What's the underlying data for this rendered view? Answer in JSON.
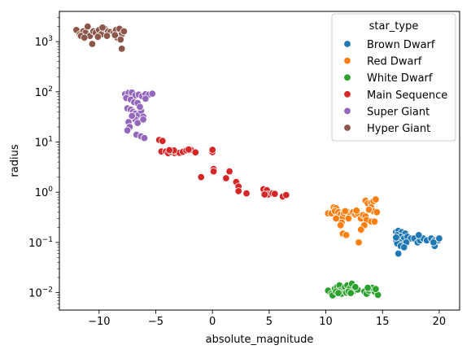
{
  "chart_data": {
    "type": "scatter",
    "xlabel": "absolute_magnitude",
    "ylabel": "radius",
    "xlim": [
      -13.5,
      21.8
    ],
    "ylim": [
      0.0045,
      4000
    ],
    "y_scale": "log",
    "grid": false,
    "x_ticks": [
      -10,
      -5,
      0,
      5,
      10,
      15,
      20
    ],
    "x_tick_labels": [
      "−10",
      "−5",
      "0",
      "5",
      "10",
      "15",
      "20"
    ],
    "y_ticks": [
      0.01,
      0.1,
      1,
      10,
      100,
      1000
    ],
    "y_tick_labels": [
      {
        "base": "10",
        "exp": "−2"
      },
      {
        "base": "10",
        "exp": "−1"
      },
      {
        "base": "10",
        "exp": "0"
      },
      {
        "base": "10",
        "exp": "1"
      },
      {
        "base": "10",
        "exp": "2"
      },
      {
        "base": "10",
        "exp": "3"
      }
    ],
    "legend": {
      "title": "star_type",
      "position": "top-right"
    },
    "series": [
      {
        "name": "Brown Dwarf",
        "color": "#1f77b4",
        "points": [
          [
            16.2,
            0.16
          ],
          [
            16.4,
            0.17
          ],
          [
            16.7,
            0.16
          ],
          [
            17.0,
            0.15
          ],
          [
            16.3,
            0.14
          ],
          [
            16.6,
            0.13
          ],
          [
            16.9,
            0.12
          ],
          [
            17.2,
            0.13
          ],
          [
            17.5,
            0.12
          ],
          [
            16.2,
            0.11
          ],
          [
            16.5,
            0.1
          ],
          [
            16.8,
            0.09
          ],
          [
            17.1,
            0.1
          ],
          [
            16.3,
            0.095
          ],
          [
            16.6,
            0.085
          ],
          [
            16.9,
            0.08
          ],
          [
            16.4,
            0.06
          ],
          [
            17.8,
            0.12
          ],
          [
            18.1,
            0.1
          ],
          [
            18.3,
            0.11
          ],
          [
            18.6,
            0.12
          ],
          [
            18.9,
            0.11
          ],
          [
            18.2,
            0.14
          ],
          [
            19.3,
            0.12
          ],
          [
            19.6,
            0.11
          ],
          [
            19.9,
            0.11
          ],
          [
            19.6,
            0.085
          ],
          [
            19.5,
            0.1
          ],
          [
            20.0,
            0.12
          ],
          [
            16.2,
            0.125
          ]
        ]
      },
      {
        "name": "Red Dwarf",
        "color": "#ff7f0e",
        "points": [
          [
            10.2,
            0.38
          ],
          [
            10.5,
            0.38
          ],
          [
            10.7,
            0.5
          ],
          [
            10.9,
            0.48
          ],
          [
            10.8,
            0.42
          ],
          [
            11.1,
            0.4
          ],
          [
            11.3,
            0.36
          ],
          [
            11.5,
            0.32
          ],
          [
            11.6,
            0.38
          ],
          [
            11.9,
            0.4
          ],
          [
            12.1,
            0.36
          ],
          [
            12.4,
            0.4
          ],
          [
            12.6,
            0.36
          ],
          [
            12.8,
            0.38
          ],
          [
            11.4,
            0.25
          ],
          [
            11.3,
            0.22
          ],
          [
            11.5,
            0.15
          ],
          [
            11.8,
            0.14
          ],
          [
            12.9,
            0.1
          ],
          [
            13.1,
            0.3
          ],
          [
            13.3,
            0.35
          ],
          [
            13.5,
            0.33
          ],
          [
            13.6,
            0.28
          ],
          [
            13.4,
            0.22
          ],
          [
            13.5,
            0.68
          ],
          [
            13.7,
            0.6
          ],
          [
            14.0,
            0.62
          ],
          [
            14.2,
            0.66
          ],
          [
            14.4,
            0.72
          ],
          [
            14.0,
            0.5
          ],
          [
            14.2,
            0.42
          ],
          [
            14.0,
            0.26
          ],
          [
            14.3,
            0.26
          ],
          [
            13.8,
            0.45
          ],
          [
            14.5,
            0.4
          ],
          [
            10.9,
            0.3
          ],
          [
            11.7,
            0.42
          ],
          [
            12.0,
            0.3
          ],
          [
            12.7,
            0.43
          ],
          [
            13.1,
            0.18
          ]
        ]
      },
      {
        "name": "White Dwarf",
        "color": "#2ca02c",
        "points": [
          [
            10.2,
            0.011
          ],
          [
            10.5,
            0.0095
          ],
          [
            10.6,
            0.0088
          ],
          [
            10.8,
            0.012
          ],
          [
            11.0,
            0.013
          ],
          [
            11.2,
            0.014
          ],
          [
            11.3,
            0.011
          ],
          [
            11.5,
            0.0105
          ],
          [
            11.7,
            0.013
          ],
          [
            11.9,
            0.014
          ],
          [
            12.1,
            0.012
          ],
          [
            12.3,
            0.015
          ],
          [
            12.5,
            0.011
          ],
          [
            12.8,
            0.0115
          ],
          [
            11.4,
            0.0095
          ],
          [
            11.8,
            0.01
          ],
          [
            12.6,
            0.013
          ],
          [
            13.4,
            0.0105
          ],
          [
            13.6,
            0.0095
          ],
          [
            13.8,
            0.011
          ],
          [
            14.0,
            0.012
          ],
          [
            14.3,
            0.0105
          ],
          [
            14.6,
            0.009
          ],
          [
            14.1,
            0.0125
          ],
          [
            10.9,
            0.0105
          ],
          [
            11.1,
            0.0098
          ],
          [
            12.0,
            0.0105
          ],
          [
            12.2,
            0.0098
          ],
          [
            13.7,
            0.0125
          ],
          [
            14.4,
            0.0118
          ]
        ]
      },
      {
        "name": "Main Sequence",
        "color": "#d62728",
        "points": [
          [
            -4.7,
            11.0
          ],
          [
            -4.4,
            10.5
          ],
          [
            -4.5,
            6.5
          ],
          [
            -4.1,
            6.5
          ],
          [
            -3.9,
            6.0
          ],
          [
            -3.6,
            6.3
          ],
          [
            -3.3,
            6.0
          ],
          [
            -3.1,
            6.2
          ],
          [
            -2.9,
            6.1
          ],
          [
            -2.6,
            6.4
          ],
          [
            -2.3,
            6.8
          ],
          [
            -2.0,
            6.8
          ],
          [
            -1.9,
            7.0
          ],
          [
            -1.5,
            6.2
          ],
          [
            -3.4,
            6.8
          ],
          [
            -2.1,
            7.1
          ],
          [
            0.0,
            6.3
          ],
          [
            0.0,
            7.0
          ],
          [
            -1.0,
            2.0
          ],
          [
            0.1,
            2.9
          ],
          [
            0.1,
            2.6
          ],
          [
            1.2,
            1.9
          ],
          [
            1.5,
            2.6
          ],
          [
            2.1,
            1.6
          ],
          [
            2.3,
            1.3
          ],
          [
            2.3,
            1.05
          ],
          [
            3.0,
            0.95
          ],
          [
            4.5,
            1.15
          ],
          [
            4.8,
            1.1
          ],
          [
            4.9,
            0.9
          ],
          [
            5.3,
            0.95
          ],
          [
            5.5,
            0.93
          ],
          [
            6.2,
            0.82
          ],
          [
            6.5,
            0.88
          ],
          [
            4.6,
            0.9
          ],
          [
            -3.8,
            6.9
          ]
        ]
      },
      {
        "name": "Super Giant",
        "color": "#9467bd",
        "points": [
          [
            -7.7,
            90
          ],
          [
            -7.4,
            95
          ],
          [
            -7.1,
            97
          ],
          [
            -6.8,
            85
          ],
          [
            -6.5,
            88
          ],
          [
            -6.2,
            82
          ],
          [
            -5.9,
            90
          ],
          [
            -5.6,
            88
          ],
          [
            -5.3,
            92
          ],
          [
            -7.6,
            75
          ],
          [
            -7.2,
            70
          ],
          [
            -6.9,
            62
          ],
          [
            -6.6,
            60
          ],
          [
            -7.5,
            47
          ],
          [
            -7.2,
            44
          ],
          [
            -7.0,
            40
          ],
          [
            -6.8,
            37
          ],
          [
            -6.5,
            35
          ],
          [
            -6.3,
            42
          ],
          [
            -6.1,
            32
          ],
          [
            -7.4,
            25
          ],
          [
            -7.3,
            20
          ],
          [
            -7.5,
            17
          ],
          [
            -6.7,
            14
          ],
          [
            -6.3,
            13
          ],
          [
            -6.0,
            12
          ],
          [
            -6.8,
            28
          ],
          [
            -6.6,
            24
          ],
          [
            -7.1,
            33
          ],
          [
            -6.4,
            50
          ],
          [
            -5.9,
            73
          ],
          [
            -6.1,
            28
          ]
        ]
      },
      {
        "name": "Hyper Giant",
        "color": "#8c564b",
        "points": [
          [
            -12.0,
            1700
          ],
          [
            -11.7,
            1400
          ],
          [
            -11.4,
            1600
          ],
          [
            -11.2,
            1500
          ],
          [
            -11.0,
            2000
          ],
          [
            -10.8,
            1300
          ],
          [
            -10.5,
            1600
          ],
          [
            -10.3,
            1500
          ],
          [
            -10.0,
            1700
          ],
          [
            -9.8,
            1400
          ],
          [
            -9.5,
            1800
          ],
          [
            -9.2,
            1600
          ],
          [
            -9.0,
            1550
          ],
          [
            -8.7,
            1500
          ],
          [
            -8.5,
            1700
          ],
          [
            -8.2,
            1800
          ],
          [
            -8.0,
            1400
          ],
          [
            -7.8,
            1600
          ],
          [
            -8.4,
            1200
          ],
          [
            -8.1,
            1100
          ],
          [
            -10.6,
            900
          ],
          [
            -11.6,
            1300
          ],
          [
            -9.7,
            1900
          ],
          [
            -8.6,
            1350
          ],
          [
            -8.0,
            720
          ],
          [
            -11.3,
            1200
          ],
          [
            -10.1,
            1250
          ],
          [
            -9.3,
            1300
          ]
        ]
      }
    ]
  }
}
